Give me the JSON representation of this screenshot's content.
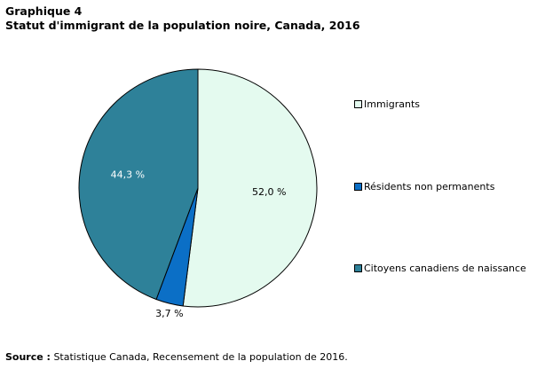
{
  "header": {
    "label": "Graphique  4",
    "title": "Statut d'immigrant  de la population  noire, Canada, 2016"
  },
  "chart_data": {
    "type": "pie",
    "categories": [
      "Immigrants",
      "Résidents non permanents",
      "Citoyens canadiens de naissance"
    ],
    "values": [
      52.0,
      3.7,
      44.3
    ],
    "data_labels": [
      "52,0 %",
      "3,7 %",
      "44,3 %"
    ],
    "colors": [
      "#e4faef",
      "#0b6fc6",
      "#2e8199"
    ],
    "label_colors": [
      "#000000",
      "#000000",
      "#ffffff"
    ],
    "legend_placement": "right"
  },
  "source": {
    "label": "Source :",
    "text": " Statistique  Canada, Recensement de la population de 2016."
  }
}
